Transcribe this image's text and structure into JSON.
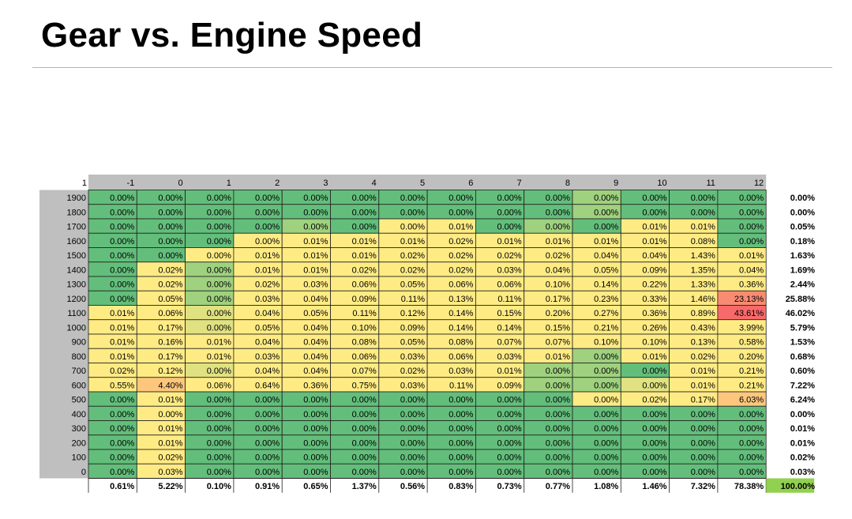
{
  "title": "Gear vs. Engine Speed",
  "colors": {
    "green": "#63be7b",
    "yellow": "#ffeb84",
    "red": "#f8696b",
    "header_gray": "#bfbfbf",
    "total_highlight": "#92d050"
  },
  "chart_data": {
    "type": "heatmap",
    "corner_label": "1",
    "columns": [
      "-1",
      "0",
      "1",
      "2",
      "3",
      "4",
      "5",
      "6",
      "7",
      "8",
      "9",
      "10",
      "11",
      "12"
    ],
    "rows": [
      "1900",
      "1800",
      "1700",
      "1600",
      "1500",
      "1400",
      "1300",
      "1200",
      "1100",
      "1000",
      "900",
      "800",
      "700",
      "600",
      "500",
      "400",
      "300",
      "200",
      "100",
      "0"
    ],
    "values": [
      [
        "0.00%",
        "0.00%",
        "0.00%",
        "0.00%",
        "0.00%",
        "0.00%",
        "0.00%",
        "0.00%",
        "0.00%",
        "0.00%",
        "0.00%",
        "0.00%",
        "0.00%",
        "0.00%"
      ],
      [
        "0.00%",
        "0.00%",
        "0.00%",
        "0.00%",
        "0.00%",
        "0.00%",
        "0.00%",
        "0.00%",
        "0.00%",
        "0.00%",
        "0.00%",
        "0.00%",
        "0.00%",
        "0.00%"
      ],
      [
        "0.00%",
        "0.00%",
        "0.00%",
        "0.00%",
        "0.00%",
        "0.00%",
        "0.00%",
        "0.01%",
        "0.00%",
        "0.00%",
        "0.00%",
        "0.01%",
        "0.01%",
        "0.00%"
      ],
      [
        "0.00%",
        "0.00%",
        "0.00%",
        "0.00%",
        "0.01%",
        "0.01%",
        "0.01%",
        "0.02%",
        "0.01%",
        "0.01%",
        "0.01%",
        "0.01%",
        "0.08%",
        "0.00%"
      ],
      [
        "0.00%",
        "0.00%",
        "0.00%",
        "0.01%",
        "0.01%",
        "0.01%",
        "0.02%",
        "0.02%",
        "0.02%",
        "0.02%",
        "0.04%",
        "0.04%",
        "1.43%",
        "0.01%"
      ],
      [
        "0.00%",
        "0.02%",
        "0.00%",
        "0.01%",
        "0.01%",
        "0.02%",
        "0.02%",
        "0.02%",
        "0.03%",
        "0.04%",
        "0.05%",
        "0.09%",
        "1.35%",
        "0.04%"
      ],
      [
        "0.00%",
        "0.02%",
        "0.00%",
        "0.02%",
        "0.03%",
        "0.06%",
        "0.05%",
        "0.06%",
        "0.06%",
        "0.10%",
        "0.14%",
        "0.22%",
        "1.33%",
        "0.36%"
      ],
      [
        "0.00%",
        "0.05%",
        "0.00%",
        "0.03%",
        "0.04%",
        "0.09%",
        "0.11%",
        "0.13%",
        "0.11%",
        "0.17%",
        "0.23%",
        "0.33%",
        "1.46%",
        "23.13%"
      ],
      [
        "0.01%",
        "0.06%",
        "0.00%",
        "0.04%",
        "0.05%",
        "0.11%",
        "0.12%",
        "0.14%",
        "0.15%",
        "0.20%",
        "0.27%",
        "0.36%",
        "0.89%",
        "43.61%"
      ],
      [
        "0.01%",
        "0.17%",
        "0.00%",
        "0.05%",
        "0.04%",
        "0.10%",
        "0.09%",
        "0.14%",
        "0.14%",
        "0.15%",
        "0.21%",
        "0.26%",
        "0.43%",
        "3.99%"
      ],
      [
        "0.01%",
        "0.16%",
        "0.01%",
        "0.04%",
        "0.04%",
        "0.08%",
        "0.05%",
        "0.08%",
        "0.07%",
        "0.07%",
        "0.10%",
        "0.10%",
        "0.13%",
        "0.58%"
      ],
      [
        "0.01%",
        "0.17%",
        "0.01%",
        "0.03%",
        "0.04%",
        "0.06%",
        "0.03%",
        "0.06%",
        "0.03%",
        "0.01%",
        "0.00%",
        "0.01%",
        "0.02%",
        "0.20%"
      ],
      [
        "0.02%",
        "0.12%",
        "0.00%",
        "0.04%",
        "0.04%",
        "0.07%",
        "0.02%",
        "0.03%",
        "0.01%",
        "0.00%",
        "0.00%",
        "0.00%",
        "0.01%",
        "0.21%"
      ],
      [
        "0.55%",
        "4.40%",
        "0.06%",
        "0.64%",
        "0.36%",
        "0.75%",
        "0.03%",
        "0.11%",
        "0.09%",
        "0.00%",
        "0.00%",
        "0.00%",
        "0.01%",
        "0.21%"
      ],
      [
        "0.00%",
        "0.01%",
        "0.00%",
        "0.00%",
        "0.00%",
        "0.00%",
        "0.00%",
        "0.00%",
        "0.00%",
        "0.00%",
        "0.00%",
        "0.02%",
        "0.17%",
        "6.03%"
      ],
      [
        "0.00%",
        "0.00%",
        "0.00%",
        "0.00%",
        "0.00%",
        "0.00%",
        "0.00%",
        "0.00%",
        "0.00%",
        "0.00%",
        "0.00%",
        "0.00%",
        "0.00%",
        "0.00%"
      ],
      [
        "0.00%",
        "0.01%",
        "0.00%",
        "0.00%",
        "0.00%",
        "0.00%",
        "0.00%",
        "0.00%",
        "0.00%",
        "0.00%",
        "0.00%",
        "0.00%",
        "0.00%",
        "0.00%"
      ],
      [
        "0.00%",
        "0.01%",
        "0.00%",
        "0.00%",
        "0.00%",
        "0.00%",
        "0.00%",
        "0.00%",
        "0.00%",
        "0.00%",
        "0.00%",
        "0.00%",
        "0.00%",
        "0.00%"
      ],
      [
        "0.00%",
        "0.02%",
        "0.00%",
        "0.00%",
        "0.00%",
        "0.00%",
        "0.00%",
        "0.00%",
        "0.00%",
        "0.00%",
        "0.00%",
        "0.00%",
        "0.00%",
        "0.00%"
      ],
      [
        "0.00%",
        "0.03%",
        "0.00%",
        "0.00%",
        "0.00%",
        "0.00%",
        "0.00%",
        "0.00%",
        "0.00%",
        "0.00%",
        "0.00%",
        "0.00%",
        "0.00%",
        "0.00%"
      ]
    ],
    "color_levels": [
      [
        "g",
        "g",
        "g",
        "g",
        "g",
        "g",
        "g",
        "g",
        "g",
        "g",
        "lg",
        "g",
        "g",
        "g"
      ],
      [
        "g",
        "g",
        "g",
        "g",
        "g",
        "g",
        "g",
        "g",
        "g",
        "g",
        "lg",
        "g",
        "g",
        "g"
      ],
      [
        "g",
        "g",
        "g",
        "g",
        "lg",
        "g",
        "y",
        "y",
        "g",
        "lg",
        "g",
        "y",
        "y",
        "g"
      ],
      [
        "g",
        "g",
        "g",
        "y",
        "y",
        "y",
        "y",
        "y",
        "y",
        "y",
        "y",
        "y",
        "y",
        "g"
      ],
      [
        "g",
        "g",
        "y",
        "y",
        "y",
        "y",
        "y",
        "y",
        "y",
        "y",
        "y",
        "y",
        "y",
        "y"
      ],
      [
        "g",
        "y",
        "lg",
        "y",
        "y",
        "y",
        "y",
        "y",
        "y",
        "y",
        "y",
        "y",
        "y",
        "y"
      ],
      [
        "g",
        "y",
        "lg",
        "y",
        "y",
        "y",
        "y",
        "y",
        "y",
        "y",
        "y",
        "y",
        "y",
        "y"
      ],
      [
        "g",
        "y",
        "lg",
        "y",
        "y",
        "y",
        "y",
        "y",
        "y",
        "y",
        "y",
        "y",
        "y",
        "r"
      ],
      [
        "y",
        "y",
        "ly",
        "y",
        "y",
        "y",
        "y",
        "y",
        "y",
        "y",
        "y",
        "y",
        "y",
        "dr"
      ],
      [
        "y",
        "y",
        "ly",
        "y",
        "y",
        "y",
        "y",
        "y",
        "y",
        "y",
        "y",
        "y",
        "y",
        "y"
      ],
      [
        "y",
        "y",
        "y",
        "y",
        "y",
        "y",
        "y",
        "y",
        "y",
        "y",
        "y",
        "y",
        "y",
        "y"
      ],
      [
        "y",
        "y",
        "y",
        "y",
        "y",
        "y",
        "y",
        "y",
        "y",
        "y",
        "lg",
        "y",
        "y",
        "y"
      ],
      [
        "y",
        "y",
        "ly",
        "y",
        "y",
        "y",
        "y",
        "y",
        "y",
        "lg",
        "lg",
        "g",
        "y",
        "y"
      ],
      [
        "y",
        "o",
        "y",
        "y",
        "y",
        "y",
        "y",
        "y",
        "y",
        "lg",
        "lg",
        "ly",
        "y",
        "y"
      ],
      [
        "g",
        "y",
        "g",
        "g",
        "g",
        "g",
        "g",
        "g",
        "g",
        "g",
        "y",
        "y",
        "y",
        "o"
      ],
      [
        "g",
        "y",
        "g",
        "g",
        "g",
        "g",
        "g",
        "g",
        "g",
        "g",
        "g",
        "g",
        "g",
        "g"
      ],
      [
        "g",
        "y",
        "g",
        "g",
        "g",
        "g",
        "g",
        "g",
        "g",
        "g",
        "g",
        "g",
        "g",
        "g"
      ],
      [
        "g",
        "y",
        "g",
        "g",
        "g",
        "g",
        "g",
        "g",
        "g",
        "g",
        "g",
        "g",
        "g",
        "g"
      ],
      [
        "g",
        "y",
        "g",
        "g",
        "g",
        "g",
        "g",
        "g",
        "g",
        "g",
        "g",
        "g",
        "g",
        "g"
      ],
      [
        "g",
        "y",
        "g",
        "g",
        "g",
        "g",
        "g",
        "g",
        "g",
        "g",
        "g",
        "g",
        "g",
        "g"
      ]
    ],
    "row_totals": [
      "0.00%",
      "0.00%",
      "0.05%",
      "0.18%",
      "1.63%",
      "1.69%",
      "2.44%",
      "25.88%",
      "46.02%",
      "5.79%",
      "1.53%",
      "0.68%",
      "0.60%",
      "7.22%",
      "6.24%",
      "0.00%",
      "0.01%",
      "0.01%",
      "0.02%",
      "0.03%"
    ],
    "column_totals": [
      "0.61%",
      "5.22%",
      "0.10%",
      "0.91%",
      "0.65%",
      "1.37%",
      "0.56%",
      "0.83%",
      "0.73%",
      "0.77%",
      "1.08%",
      "1.46%",
      "7.32%",
      "78.38%"
    ],
    "grand_total": "100.00%"
  }
}
